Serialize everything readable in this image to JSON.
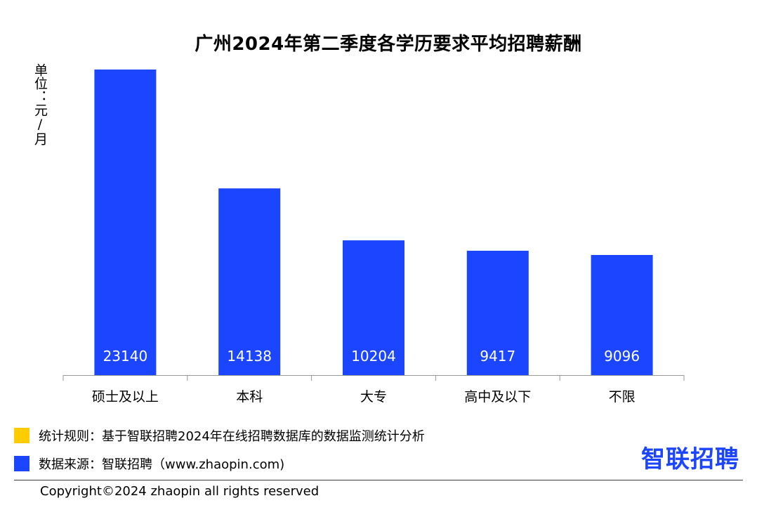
{
  "chart_data": {
    "type": "bar",
    "title": "广州2024年第二季度各学历要求平均招聘薪酬",
    "ylabel": "单位：元/月",
    "xlabel": "",
    "categories": [
      "硕士及以上",
      "本科",
      "大专",
      "高中及以下",
      "不限"
    ],
    "values": [
      23140,
      14138,
      10204,
      9417,
      9096
    ],
    "ylim": [
      0,
      25000
    ],
    "grid": false,
    "legend": "none",
    "bar_color": "#1c45ff",
    "data_label_color": "#ffffff"
  },
  "notes": {
    "rule": {
      "text": "统计规则：基于智联招聘2024年在线招聘数据库的数据监测统计分析",
      "swatch_color": "#ffcc00"
    },
    "source": {
      "text": "数据来源：智联招聘（www.zhaopin.com)",
      "swatch_color": "#1c45ff"
    }
  },
  "brand": {
    "logo_text": "智联招聘",
    "color": "#1c45ff"
  },
  "footer": {
    "copyright": "Copyright©2024 zhaopin all rights reserved"
  }
}
